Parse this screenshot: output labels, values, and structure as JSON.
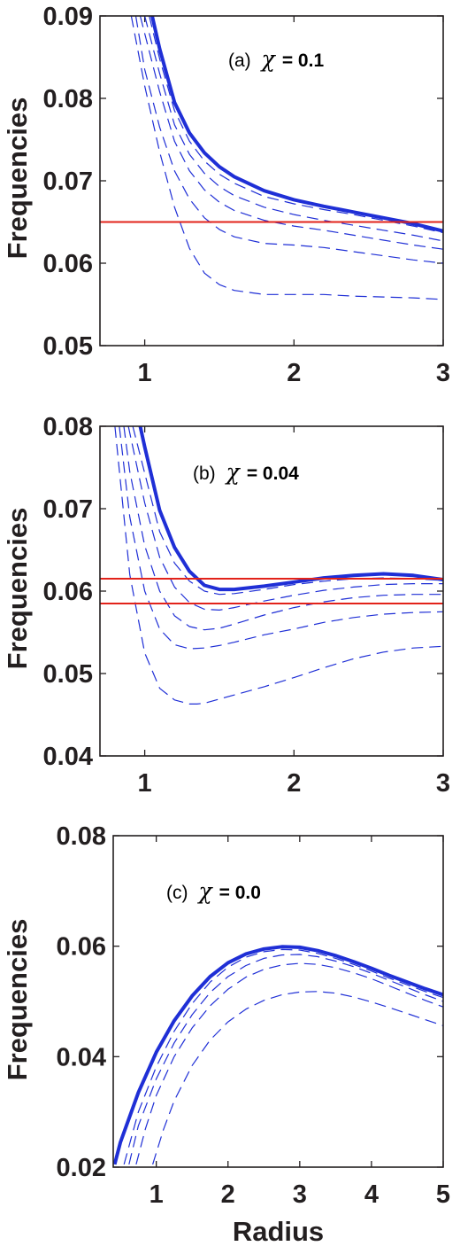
{
  "chart_data": [
    {
      "type": "line",
      "panel_label": "(a)",
      "chi_symbol": "χ",
      "chi_value": "= 0.1",
      "ylabel": "Frequencies",
      "xlabel": "",
      "xlim": [
        0.7,
        3.0
      ],
      "ylim": [
        0.05,
        0.09
      ],
      "xticks": [
        1,
        2,
        3
      ],
      "xtick_labels": [
        "1",
        "2",
        "3"
      ],
      "yticks": [
        0.05,
        0.06,
        0.07,
        0.08,
        0.09
      ],
      "ytick_labels": [
        "0.05",
        "0.06",
        "0.07",
        "0.08",
        "0.09"
      ],
      "hlines": [
        0.065
      ],
      "colors": {
        "curve": "#1f2fd6",
        "hline": "#e2231a"
      },
      "series": [
        {
          "style": "solid",
          "x": [
            1.05,
            1.1,
            1.2,
            1.3,
            1.4,
            1.5,
            1.6,
            1.8,
            2.0,
            2.2,
            2.4,
            2.6,
            2.8,
            3.0
          ],
          "y": [
            0.09,
            0.086,
            0.0795,
            0.0758,
            0.0734,
            0.0717,
            0.0705,
            0.0688,
            0.0677,
            0.0669,
            0.0662,
            0.0655,
            0.0648,
            0.0639
          ]
        },
        {
          "style": "dashed",
          "x": [
            1.03,
            1.1,
            1.2,
            1.3,
            1.4,
            1.5,
            1.6,
            1.8,
            2.0,
            2.2,
            2.4,
            2.6,
            2.8,
            3.0
          ],
          "y": [
            0.09,
            0.0848,
            0.0785,
            0.0748,
            0.0724,
            0.0708,
            0.0697,
            0.0681,
            0.0672,
            0.0665,
            0.0659,
            0.0652,
            0.0645,
            0.0637
          ]
        },
        {
          "style": "dashed",
          "x": [
            1.0,
            1.1,
            1.2,
            1.3,
            1.4,
            1.5,
            1.6,
            1.8,
            2.0,
            2.2,
            2.4,
            2.6,
            2.8,
            3.0
          ],
          "y": [
            0.09,
            0.083,
            0.0768,
            0.0732,
            0.0709,
            0.0693,
            0.0682,
            0.0668,
            0.0659,
            0.0652,
            0.0646,
            0.064,
            0.0634,
            0.0627
          ]
        },
        {
          "style": "dashed",
          "x": [
            0.97,
            1.1,
            1.2,
            1.3,
            1.4,
            1.5,
            1.6,
            1.8,
            2.0,
            2.2,
            2.4,
            2.6,
            2.8,
            3.0
          ],
          "y": [
            0.09,
            0.0808,
            0.0748,
            0.0712,
            0.0689,
            0.0674,
            0.0664,
            0.0652,
            0.0645,
            0.064,
            0.0634,
            0.0628,
            0.0622,
            0.0617
          ]
        },
        {
          "style": "dashed",
          "x": [
            0.94,
            1.0,
            1.1,
            1.2,
            1.3,
            1.4,
            1.5,
            1.6,
            1.8,
            2.0,
            2.2,
            2.4,
            2.6,
            2.8,
            3.0
          ],
          "y": [
            0.09,
            0.0835,
            0.0765,
            0.0712,
            0.0678,
            0.0655,
            0.0641,
            0.0632,
            0.0624,
            0.0622,
            0.0619,
            0.0614,
            0.0609,
            0.0604,
            0.06
          ]
        },
        {
          "style": "dashed",
          "x": [
            0.91,
            1.0,
            1.1,
            1.2,
            1.3,
            1.4,
            1.5,
            1.6,
            1.8,
            2.0,
            2.2,
            2.4,
            2.6,
            2.8,
            3.0
          ],
          "y": [
            0.09,
            0.0815,
            0.0735,
            0.0668,
            0.0618,
            0.0588,
            0.0574,
            0.0567,
            0.0562,
            0.0562,
            0.0562,
            0.056,
            0.0559,
            0.0558,
            0.0556
          ]
        }
      ]
    },
    {
      "type": "line",
      "panel_label": "(b)",
      "chi_symbol": "χ",
      "chi_value": "= 0.04",
      "ylabel": "Frequencies",
      "xlabel": "",
      "xlim": [
        0.7,
        3.0
      ],
      "ylim": [
        0.04,
        0.08
      ],
      "xticks": [
        1,
        2,
        3
      ],
      "xtick_labels": [
        "1",
        "2",
        "3"
      ],
      "yticks": [
        0.04,
        0.05,
        0.06,
        0.07,
        0.08
      ],
      "ytick_labels": [
        "0.04",
        "0.05",
        "0.06",
        "0.07",
        "0.08"
      ],
      "hlines": [
        0.0615,
        0.0585
      ],
      "colors": {
        "curve": "#1f2fd6",
        "hline": "#e2231a"
      },
      "series": [
        {
          "style": "solid",
          "x": [
            0.97,
            1.0,
            1.1,
            1.2,
            1.3,
            1.4,
            1.5,
            1.6,
            1.8,
            2.0,
            2.2,
            2.4,
            2.6,
            2.8,
            3.0
          ],
          "y": [
            0.08,
            0.0775,
            0.0698,
            0.0653,
            0.0624,
            0.0607,
            0.0602,
            0.0602,
            0.0606,
            0.0611,
            0.0616,
            0.0619,
            0.0621,
            0.0619,
            0.0614
          ]
        },
        {
          "style": "dashed",
          "x": [
            0.92,
            1.0,
            1.1,
            1.2,
            1.3,
            1.4,
            1.5,
            1.6,
            1.8,
            2.0,
            2.2,
            2.4,
            2.6,
            2.8,
            3.0
          ],
          "y": [
            0.08,
            0.0743,
            0.0672,
            0.0634,
            0.0612,
            0.06,
            0.0596,
            0.0597,
            0.0602,
            0.0608,
            0.0612,
            0.0615,
            0.0616,
            0.0615,
            0.0613
          ]
        },
        {
          "style": "dashed",
          "x": [
            0.89,
            1.0,
            1.1,
            1.2,
            1.3,
            1.4,
            1.5,
            1.6,
            1.8,
            2.0,
            2.2,
            2.4,
            2.6,
            2.8,
            3.0
          ],
          "y": [
            0.08,
            0.0707,
            0.0641,
            0.0605,
            0.0586,
            0.0578,
            0.0577,
            0.058,
            0.0588,
            0.0595,
            0.0601,
            0.0605,
            0.0608,
            0.0609,
            0.0609
          ]
        },
        {
          "style": "dashed",
          "x": [
            0.86,
            0.9,
            1.0,
            1.1,
            1.2,
            1.3,
            1.4,
            1.5,
            1.6,
            1.8,
            2.0,
            2.2,
            2.4,
            2.6,
            2.8,
            3.0
          ],
          "y": [
            0.08,
            0.0745,
            0.0655,
            0.06,
            0.057,
            0.0557,
            0.0553,
            0.0555,
            0.056,
            0.0571,
            0.058,
            0.0587,
            0.0592,
            0.0595,
            0.0596,
            0.0596
          ]
        },
        {
          "style": "dashed",
          "x": [
            0.83,
            0.9,
            1.0,
            1.1,
            1.2,
            1.3,
            1.4,
            1.5,
            1.6,
            1.8,
            2.0,
            2.2,
            2.4,
            2.6,
            2.8,
            3.0
          ],
          "y": [
            0.08,
            0.069,
            0.06,
            0.0554,
            0.0535,
            0.053,
            0.0531,
            0.0534,
            0.0538,
            0.0547,
            0.0554,
            0.0562,
            0.0568,
            0.0572,
            0.0574,
            0.0575
          ]
        },
        {
          "style": "dashed",
          "x": [
            0.8,
            0.9,
            1.0,
            1.1,
            1.2,
            1.3,
            1.35,
            1.4,
            1.5,
            1.6,
            1.8,
            2.0,
            2.2,
            2.4,
            2.6,
            2.8,
            3.0
          ],
          "y": [
            0.08,
            0.062,
            0.0525,
            0.0482,
            0.0468,
            0.0463,
            0.0463,
            0.0464,
            0.0469,
            0.0474,
            0.0484,
            0.0495,
            0.0507,
            0.0518,
            0.0526,
            0.0531,
            0.0533
          ]
        }
      ]
    },
    {
      "type": "line",
      "panel_label": "(c)",
      "chi_symbol": "χ",
      "chi_value": "= 0.0",
      "ylabel": "Frequencies",
      "xlabel": "Radius",
      "xlim": [
        0.4,
        5.0
      ],
      "ylim": [
        0.02,
        0.08
      ],
      "xticks": [
        1,
        2,
        3,
        4,
        5
      ],
      "xtick_labels": [
        "1",
        "2",
        "3",
        "4",
        "5"
      ],
      "yticks": [
        0.02,
        0.04,
        0.06,
        0.08
      ],
      "ytick_labels": [
        "0.02",
        "0.04",
        "0.06",
        "0.08"
      ],
      "hlines": [],
      "colors": {
        "curve": "#1f2fd6"
      },
      "series": [
        {
          "style": "solid",
          "x": [
            0.42,
            0.5,
            0.75,
            1.0,
            1.25,
            1.5,
            1.75,
            2.0,
            2.25,
            2.5,
            2.75,
            3.0,
            3.25,
            3.5,
            3.75,
            4.0,
            4.25,
            4.5,
            4.75,
            5.0
          ],
          "y": [
            0.0205,
            0.0245,
            0.0335,
            0.0408,
            0.0465,
            0.051,
            0.0545,
            0.057,
            0.0586,
            0.0595,
            0.0599,
            0.0598,
            0.0592,
            0.0583,
            0.0572,
            0.056,
            0.0547,
            0.0535,
            0.0523,
            0.0512
          ]
        },
        {
          "style": "dashed",
          "x": [
            0.55,
            0.75,
            1.0,
            1.25,
            1.5,
            1.75,
            2.0,
            2.25,
            2.5,
            2.75,
            3.0,
            3.25,
            3.5,
            3.75,
            4.0,
            4.25,
            4.5,
            4.75,
            5.0
          ],
          "y": [
            0.0205,
            0.03,
            0.0382,
            0.0446,
            0.0496,
            0.0535,
            0.0562,
            0.058,
            0.059,
            0.0594,
            0.0593,
            0.0587,
            0.0578,
            0.0567,
            0.0555,
            0.0542,
            0.053,
            0.0518,
            0.0507
          ]
        },
        {
          "style": "dashed",
          "x": [
            0.62,
            0.75,
            1.0,
            1.25,
            1.5,
            1.75,
            2.0,
            2.25,
            2.5,
            2.75,
            3.0,
            3.25,
            3.5,
            3.75,
            4.0,
            4.25,
            4.5,
            4.75,
            5.0
          ],
          "y": [
            0.0205,
            0.0275,
            0.036,
            0.0425,
            0.0476,
            0.0516,
            0.0545,
            0.0565,
            0.0578,
            0.0584,
            0.0585,
            0.0581,
            0.0573,
            0.0563,
            0.0551,
            0.0538,
            0.0525,
            0.0512,
            0.05
          ]
        },
        {
          "style": "dashed",
          "x": [
            0.72,
            0.85,
            1.0,
            1.25,
            1.5,
            1.75,
            2.0,
            2.25,
            2.5,
            2.75,
            3.0,
            3.25,
            3.5,
            3.75,
            4.0,
            4.25,
            4.5,
            4.75,
            5.0
          ],
          "y": [
            0.0205,
            0.027,
            0.033,
            0.04,
            0.0452,
            0.0492,
            0.0522,
            0.0544,
            0.0558,
            0.0566,
            0.0569,
            0.0567,
            0.0561,
            0.0552,
            0.0541,
            0.0528,
            0.0515,
            0.0502,
            0.049
          ]
        },
        {
          "style": "dashed",
          "x": [
            0.95,
            1.1,
            1.25,
            1.5,
            1.75,
            2.0,
            2.25,
            2.5,
            2.75,
            3.0,
            3.25,
            3.5,
            3.75,
            4.0,
            4.25,
            4.5,
            4.75,
            5.0
          ],
          "y": [
            0.0205,
            0.0268,
            0.032,
            0.0384,
            0.043,
            0.0463,
            0.0486,
            0.0502,
            0.0512,
            0.0517,
            0.0518,
            0.0515,
            0.0508,
            0.0499,
            0.0489,
            0.0478,
            0.0467,
            0.0456
          ]
        }
      ]
    }
  ]
}
